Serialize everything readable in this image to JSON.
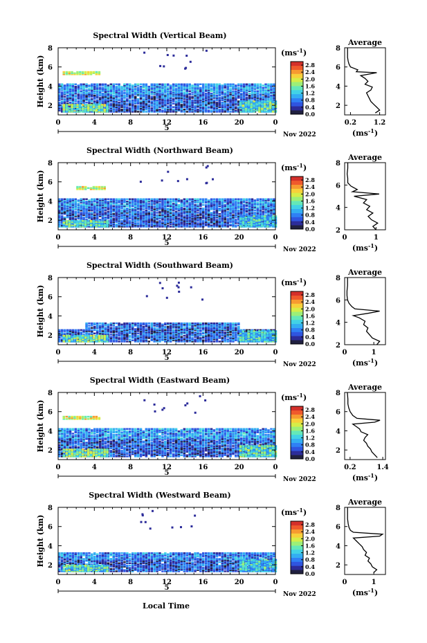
{
  "figure": {
    "xlabel": "Local Time",
    "colorbar_ticks": [
      "0.0",
      "0.4",
      "0.8",
      "1.2",
      "1.6",
      "2.0",
      "2.4",
      "2.8"
    ],
    "colorbar_unit_base": "(ms",
    "colorbar_unit_exp": "-1",
    "colorbar_unit_close": ")",
    "average_title": "Average",
    "colors": {
      "colormap": [
        "#202040",
        "#2c2c9a",
        "#2f55e0",
        "#2f80f5",
        "#33aef2",
        "#42d2e6",
        "#64e8b8",
        "#9cef78",
        "#d6ed48",
        "#f7d03a",
        "#f79a30",
        "#ef5a2c",
        "#d4302a"
      ],
      "line": "#000000"
    }
  },
  "chart_data": [
    {
      "type": "heatmap",
      "title": "Spectral Width (Vertical Beam)",
      "ylabel": "Height (km)",
      "ylim": [
        1,
        8
      ],
      "yticks": [
        "2",
        "4",
        "6",
        "8"
      ],
      "xlim": [
        0,
        24
      ],
      "xticks": [
        "0",
        "4",
        "8",
        "12",
        "16",
        "20",
        "0"
      ],
      "day_marker": "5",
      "date_label": "Nov 2022",
      "colorbar_range": [
        0.0,
        3.0
      ],
      "layers": [
        {
          "x": [
            0,
            24
          ],
          "y": [
            1.3,
            3.2
          ],
          "value": 0.6
        },
        {
          "x": [
            0.5,
            5.5
          ],
          "y": [
            1.3,
            2.1
          ],
          "value": 1.6
        },
        {
          "x": [
            20,
            24
          ],
          "y": [
            1.3,
            2.4
          ],
          "value": 1.4
        },
        {
          "x": [
            0,
            24
          ],
          "y": [
            3.2,
            4.2
          ],
          "value": 0.9
        },
        {
          "x": [
            0.5,
            4.5
          ],
          "y": [
            5.2,
            5.5
          ],
          "value": 2.0
        }
      ],
      "average": {
        "xlim": [
          0,
          1.4
        ],
        "xticks": [
          "0.2",
          "1.2"
        ],
        "ylim": [
          1,
          8
        ],
        "yticks": [
          "2",
          "4",
          "6",
          "8"
        ],
        "profile_height": [
          1.2,
          1.5,
          1.8,
          2.1,
          2.4,
          2.7,
          3.0,
          3.3,
          3.6,
          3.9,
          4.2,
          4.5,
          4.8,
          5.1,
          5.4,
          5.5,
          5.7,
          6.0,
          6.3,
          6.6,
          7.0,
          7.5,
          8.0
        ],
        "profile_value": [
          1.05,
          1.2,
          1.1,
          1.0,
          0.9,
          0.85,
          0.8,
          0.75,
          0.9,
          0.95,
          0.7,
          0.8,
          0.7,
          0.55,
          1.1,
          0.4,
          0.45,
          0.2,
          0.15,
          0.12,
          0.1,
          0.1,
          0.1
        ]
      }
    },
    {
      "type": "heatmap",
      "title": "Spectral Width (Northward Beam)",
      "ylabel": "Height (km)",
      "ylim": [
        1,
        8
      ],
      "yticks": [
        "2",
        "4",
        "6",
        "8"
      ],
      "xlim": [
        0,
        24
      ],
      "xticks": [
        "0",
        "4",
        "8",
        "12",
        "16",
        "20",
        "0"
      ],
      "day_marker": "5",
      "date_label": "Nov 2022",
      "colorbar_range": [
        0.0,
        3.0
      ],
      "layers": [
        {
          "x": [
            0,
            24
          ],
          "y": [
            1.3,
            3.2
          ],
          "value": 0.6
        },
        {
          "x": [
            0.5,
            5.5
          ],
          "y": [
            1.3,
            2.0
          ],
          "value": 1.4
        },
        {
          "x": [
            20,
            24
          ],
          "y": [
            1.3,
            2.4
          ],
          "value": 1.2
        },
        {
          "x": [
            0,
            24
          ],
          "y": [
            3.2,
            4.2
          ],
          "value": 0.8
        },
        {
          "x": [
            2,
            5
          ],
          "y": [
            5.2,
            5.5
          ],
          "value": 1.9
        }
      ],
      "average": {
        "xlim": [
          0,
          1.3
        ],
        "xticks": [
          "0",
          "1"
        ],
        "ylim": [
          2,
          8
        ],
        "yticks": [
          "2",
          "4",
          "6",
          "8"
        ],
        "profile_height": [
          2.0,
          2.3,
          2.6,
          2.9,
          3.2,
          3.5,
          3.8,
          4.1,
          4.4,
          4.7,
          5.0,
          5.2,
          5.4,
          5.6,
          5.9,
          6.2,
          6.6,
          7.0,
          7.5,
          8.0
        ],
        "profile_value": [
          1.0,
          0.9,
          1.05,
          0.85,
          0.75,
          0.9,
          0.7,
          0.8,
          0.6,
          0.7,
          0.3,
          1.1,
          0.25,
          0.4,
          0.2,
          0.1,
          0.1,
          0.08,
          0.1,
          0.1
        ]
      }
    },
    {
      "type": "heatmap",
      "title": "Spectral Width (Southward Beam)",
      "ylabel": "Height (km)",
      "ylim": [
        1,
        8
      ],
      "yticks": [
        "2",
        "4",
        "6",
        "8"
      ],
      "xlim": [
        0,
        24
      ],
      "xticks": [
        "0",
        "4",
        "8",
        "12",
        "16",
        "20",
        "0"
      ],
      "day_marker": "5",
      "date_label": "Nov 2022",
      "colorbar_range": [
        0.0,
        3.0
      ],
      "layers": [
        {
          "x": [
            0,
            24
          ],
          "y": [
            1.3,
            2.6
          ],
          "value": 0.6
        },
        {
          "x": [
            0.5,
            5.5
          ],
          "y": [
            1.3,
            2.0
          ],
          "value": 1.5
        },
        {
          "x": [
            20,
            24
          ],
          "y": [
            1.3,
            2.5
          ],
          "value": 1.3
        },
        {
          "x": [
            3,
            20
          ],
          "y": [
            2.6,
            3.3
          ],
          "value": 0.7
        }
      ],
      "average": {
        "xlim": [
          0,
          1.4
        ],
        "xticks": [
          "0",
          "1"
        ],
        "ylim": [
          2,
          8
        ],
        "yticks": [
          "2",
          "4",
          "6",
          "8"
        ],
        "profile_height": [
          2.0,
          2.3,
          2.6,
          2.9,
          3.2,
          3.5,
          3.8,
          4.1,
          4.4,
          4.6,
          4.8,
          5.0,
          5.2,
          5.4,
          5.7,
          6.0,
          6.4,
          6.8,
          7.3,
          8.0
        ],
        "profile_value": [
          1.1,
          1.2,
          0.95,
          0.85,
          0.75,
          0.8,
          0.65,
          0.7,
          0.5,
          0.3,
          0.8,
          1.2,
          0.35,
          0.25,
          0.15,
          0.1,
          0.08,
          0.08,
          0.1,
          0.1
        ]
      }
    },
    {
      "type": "heatmap",
      "title": "Spectral Width (Eastward Beam)",
      "ylabel": "Height (km)",
      "ylim": [
        1,
        8
      ],
      "yticks": [
        "2",
        "4",
        "6",
        "8"
      ],
      "xlim": [
        0,
        24
      ],
      "xticks": [
        "0",
        "4",
        "8",
        "12",
        "16",
        "20",
        "0"
      ],
      "day_marker": "5",
      "date_label": "Nov 2022",
      "colorbar_range": [
        0.0,
        3.0
      ],
      "layers": [
        {
          "x": [
            0,
            24
          ],
          "y": [
            1.3,
            3.2
          ],
          "value": 0.6
        },
        {
          "x": [
            0.5,
            5.5
          ],
          "y": [
            1.3,
            2.1
          ],
          "value": 1.6
        },
        {
          "x": [
            20,
            24
          ],
          "y": [
            1.3,
            2.4
          ],
          "value": 1.4
        },
        {
          "x": [
            0,
            24
          ],
          "y": [
            3.2,
            4.2
          ],
          "value": 0.9
        },
        {
          "x": [
            0.5,
            4.5
          ],
          "y": [
            5.2,
            5.5
          ],
          "value": 2.0
        }
      ],
      "average": {
        "xlim": [
          0,
          1.5
        ],
        "xticks": [
          "0.2",
          "1.4"
        ],
        "ylim": [
          1,
          8
        ],
        "yticks": [
          "2",
          "4",
          "6",
          "8"
        ],
        "profile_height": [
          1.2,
          1.5,
          1.8,
          2.1,
          2.4,
          2.7,
          3.0,
          3.3,
          3.6,
          3.9,
          4.2,
          4.5,
          4.7,
          4.9,
          5.1,
          5.3,
          5.6,
          6.0,
          6.4,
          6.8,
          7.3,
          8.0
        ],
        "profile_value": [
          1.2,
          1.1,
          1.0,
          0.95,
          0.85,
          0.8,
          0.7,
          0.75,
          0.85,
          0.6,
          0.55,
          0.4,
          0.3,
          1.1,
          1.3,
          0.45,
          0.3,
          0.2,
          0.15,
          0.12,
          0.12,
          0.1
        ]
      }
    },
    {
      "type": "heatmap",
      "title": "Spectral Width (Westward Beam)",
      "ylabel": "Height (km)",
      "ylim": [
        1,
        8
      ],
      "yticks": [
        "2",
        "4",
        "6",
        "8"
      ],
      "xlim": [
        0,
        24
      ],
      "xticks": [
        "0",
        "4",
        "8",
        "12",
        "16",
        "20",
        "0"
      ],
      "day_marker": "5",
      "date_label": "Nov 2022",
      "colorbar_range": [
        0.0,
        3.0
      ],
      "layers": [
        {
          "x": [
            0,
            24
          ],
          "y": [
            1.3,
            2.6
          ],
          "value": 0.6
        },
        {
          "x": [
            0.5,
            5.5
          ],
          "y": [
            1.3,
            2.0
          ],
          "value": 1.4
        },
        {
          "x": [
            20,
            24
          ],
          "y": [
            1.3,
            2.6
          ],
          "value": 1.2
        },
        {
          "x": [
            0,
            24
          ],
          "y": [
            2.6,
            3.3
          ],
          "value": 0.8
        }
      ],
      "average": {
        "xlim": [
          0,
          1.4
        ],
        "xticks": [
          "0",
          "1"
        ],
        "ylim": [
          1,
          8
        ],
        "yticks": [
          "2",
          "4",
          "6",
          "8"
        ],
        "profile_height": [
          1.2,
          1.5,
          1.8,
          2.1,
          2.4,
          2.7,
          3.0,
          3.3,
          3.6,
          3.9,
          4.2,
          4.5,
          4.8,
          5.0,
          5.2,
          5.4,
          5.6,
          5.9,
          6.3,
          6.8,
          7.3,
          8.0
        ],
        "profile_value": [
          1.0,
          1.1,
          0.95,
          0.9,
          0.8,
          0.85,
          0.7,
          0.75,
          0.65,
          0.6,
          0.5,
          0.4,
          0.3,
          1.2,
          1.3,
          0.3,
          0.2,
          0.15,
          0.12,
          0.1,
          0.1,
          0.1
        ]
      }
    }
  ]
}
